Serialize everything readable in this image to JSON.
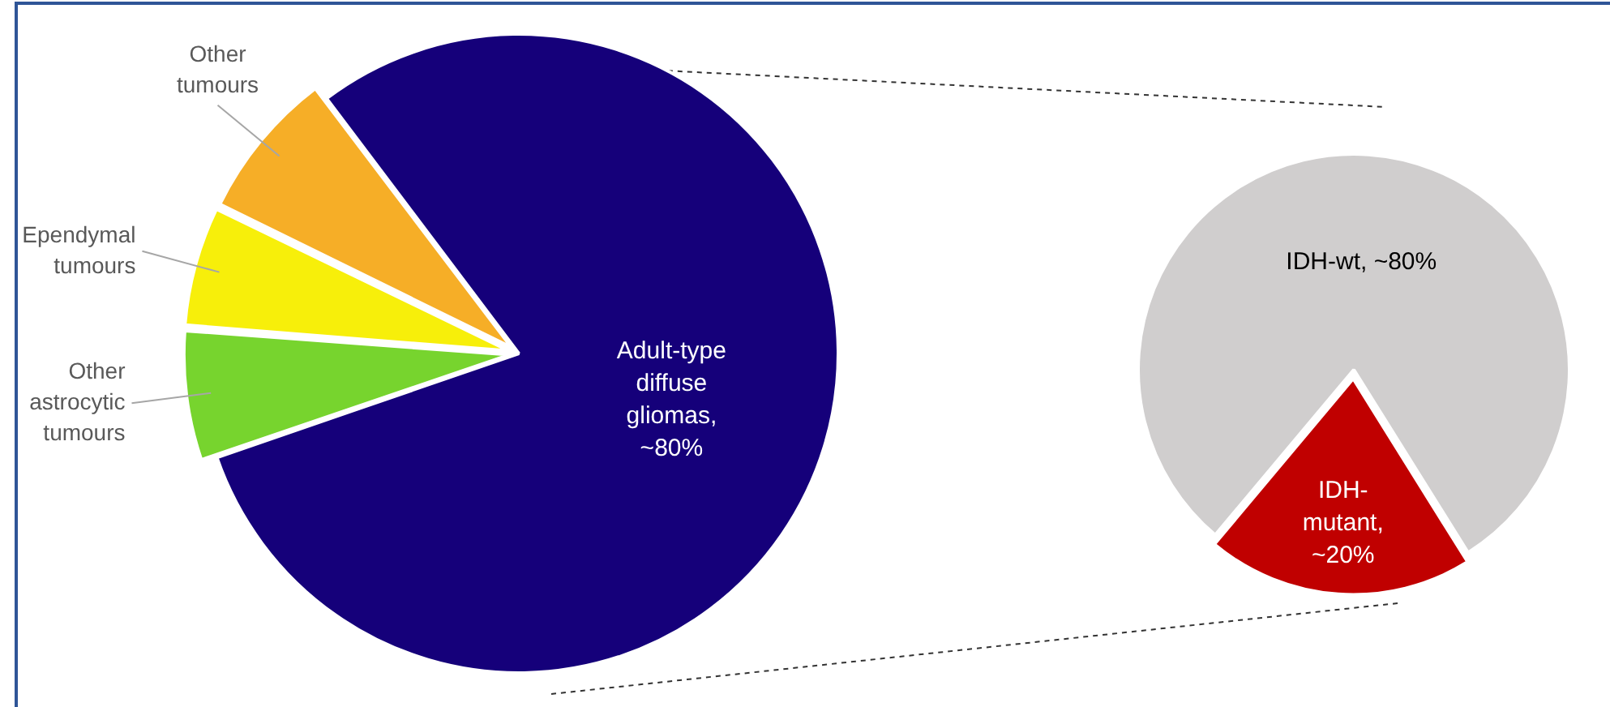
{
  "chart_data": [
    {
      "type": "pie",
      "categories": [
        "Adult-type diffuse gliomas, ~80%",
        "Other astrocytic tumours",
        "Ependymal tumours",
        "Other tumours"
      ],
      "values": [
        80,
        6.5,
        6,
        7.5
      ],
      "colors": [
        "#15007a",
        "#77d42e",
        "#f7ef0a",
        "#f6ae27"
      ]
    },
    {
      "type": "pie",
      "categories": [
        "IDH-wt, ~80%",
        "IDH-mutant, ~20%"
      ],
      "values": [
        80,
        20
      ],
      "colors": [
        "#d0cece",
        "#c00000"
      ]
    }
  ]
}
